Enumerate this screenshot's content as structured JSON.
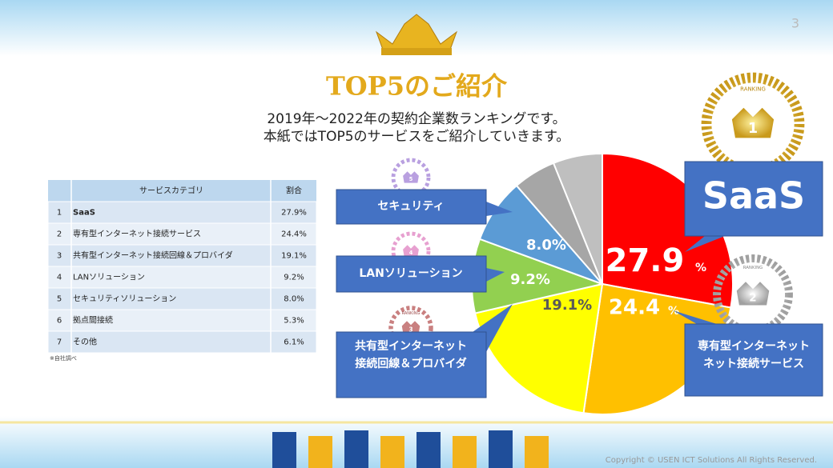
{
  "header": {
    "title": "TOP5のご紹介",
    "subtitle": [
      "2019年～2022年の契約企業数ランキングです。",
      "本紙ではTOP5のサービスをご紹介していきます。"
    ],
    "page_number": "3"
  },
  "table": {
    "columns": [
      "サービスカテゴリ",
      "割合"
    ],
    "rows": [
      [
        "1",
        "SaaS",
        "27.9%"
      ],
      [
        "2",
        "専有型インターネット接続サービス",
        "24.4%"
      ],
      [
        "3",
        "共有型インターネット接続回線＆プロバイダ",
        "19.1%"
      ],
      [
        "4",
        "LANソリューション",
        "9.2%"
      ],
      [
        "5",
        "セキュリティソリューション",
        "8.0%"
      ],
      [
        "6",
        "拠点間接続",
        "5.3%"
      ],
      [
        "7",
        "その他",
        "6.1%"
      ]
    ],
    "note": "※自社調べ"
  },
  "chart_data": {
    "type": "pie",
    "categories": [
      "SaaS",
      "専有型インターネット接続サービス",
      "共有型インターネット接続回線＆プロバイダ",
      "LANソリューション",
      "セキュリティソリューション",
      "拠点間接続",
      "その他"
    ],
    "values": [
      27.9,
      24.4,
      19.1,
      9.2,
      8.0,
      5.3,
      6.1
    ],
    "colors": [
      "#ff0000",
      "#ffc000",
      "#ffff00",
      "#92d050",
      "#5b9bd5",
      "#a6a6a6",
      "#bfbfbf"
    ],
    "value_labels": [
      "27.9",
      "24.4",
      "19.1%",
      "9.2%",
      "8.0%",
      null,
      null
    ],
    "percent_sign": "%"
  },
  "callouts": [
    {
      "lines": [
        "SaaS"
      ]
    },
    {
      "lines": [
        "専有型インターネット",
        "ネット接続サービス"
      ]
    },
    {
      "lines": [
        "セキュリティ"
      ]
    },
    {
      "lines": [
        "LANソリューション"
      ]
    },
    {
      "lines": [
        "共有型インターネット",
        "接続回線＆プロバイダ"
      ]
    }
  ],
  "badges": [
    {
      "label": "RANKING",
      "rank": "1"
    },
    {
      "label": "RANKING",
      "rank": "2"
    },
    {
      "label": "RANKING",
      "rank": "3"
    },
    {
      "rank": "4"
    },
    {
      "rank": "5"
    }
  ],
  "footer": "Copyright © USEN ICT Solutions All Rights Reserved."
}
